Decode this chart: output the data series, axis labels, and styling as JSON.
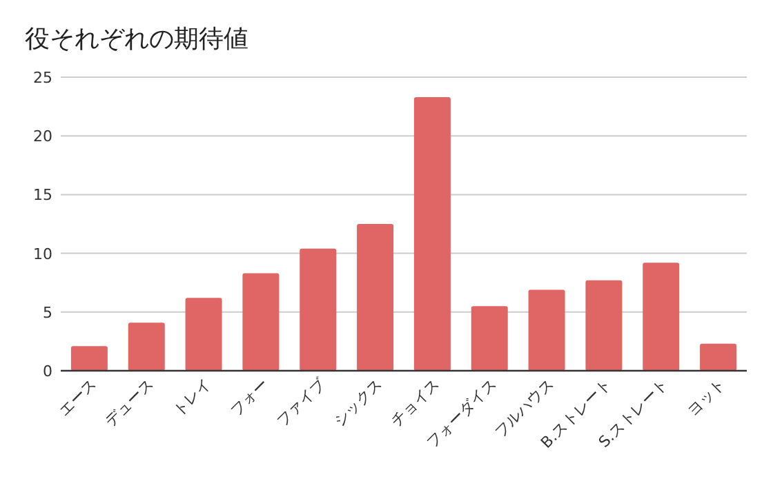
{
  "chart_data": {
    "type": "bar",
    "title": "役それぞれの期待値",
    "categories": [
      "エース",
      "デュース",
      "トレイ",
      "フォー",
      "ファイブ",
      "シックス",
      "チョイス",
      "フォーダイス",
      "フルハウス",
      "B.ストレート",
      "S.ストレート",
      "ヨット"
    ],
    "values": [
      2.1,
      4.1,
      6.2,
      8.3,
      10.4,
      12.5,
      23.3,
      5.5,
      6.9,
      7.7,
      9.2,
      2.3
    ],
    "color": "#e06666",
    "ylim": [
      0,
      25
    ],
    "yticks": [
      0,
      5,
      10,
      15,
      20,
      25
    ],
    "grid": "y"
  }
}
